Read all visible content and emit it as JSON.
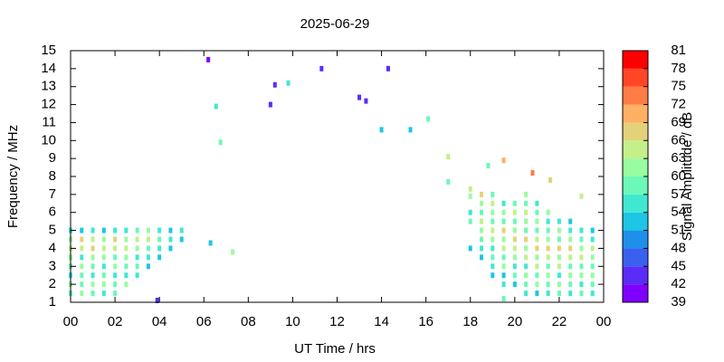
{
  "chart_data": {
    "type": "scatter",
    "title": "2025-06-29",
    "xlabel": "UT Time / hrs",
    "ylabel": "Frequency / MHz",
    "colorbar_label": "Signal Amplitude / dB",
    "xlim": [
      0,
      24
    ],
    "xticks": [
      {
        "value": 0,
        "label": "00"
      },
      {
        "value": 2,
        "label": "02"
      },
      {
        "value": 4,
        "label": "04"
      },
      {
        "value": 6,
        "label": "06"
      },
      {
        "value": 8,
        "label": "08"
      },
      10,
      12,
      14,
      16,
      18,
      20,
      22,
      {
        "value": 24,
        "label": "00"
      }
    ],
    "ylim": [
      1,
      15
    ],
    "yticks": [
      1,
      2,
      3,
      4,
      5,
      6,
      7,
      8,
      9,
      10,
      11,
      12,
      13,
      14,
      15
    ],
    "zlim": [
      39,
      81
    ],
    "zticks": [
      39,
      42,
      45,
      48,
      51,
      54,
      57,
      60,
      63,
      66,
      69,
      72,
      75,
      78,
      81
    ],
    "colors": [
      "#7f00ff",
      "#5b2cf6",
      "#3a60f0",
      "#1e90ec",
      "#1cc6e4",
      "#40e8d2",
      "#6cf8b8",
      "#98fca0",
      "#c4f08a",
      "#e4d27a",
      "#ffb064",
      "#ff7c46",
      "#ff4626",
      "#ff0000"
    ],
    "sweeps": [
      {
        "time": 0,
        "frequency": [
          1.5,
          2,
          2.5,
          3,
          3.5,
          4,
          4.5,
          5
        ],
        "amplitude": [
          57,
          60,
          54,
          57,
          60,
          63,
          60,
          54
        ]
      },
      {
        "time": 0.5,
        "frequency": [
          1.5,
          2,
          2.5,
          3,
          3.5,
          4,
          4.5,
          5
        ],
        "amplitude": [
          60,
          57,
          57,
          60,
          54,
          63,
          66,
          51
        ]
      },
      {
        "time": 1,
        "frequency": [
          1.5,
          2,
          2.5,
          3,
          3.5,
          4,
          4.5,
          5
        ],
        "amplitude": [
          57,
          60,
          54,
          57,
          60,
          66,
          63,
          54
        ]
      },
      {
        "time": 1.5,
        "frequency": [
          1.5,
          2,
          2.5,
          3,
          3.5,
          4,
          4.5,
          5
        ],
        "amplitude": [
          54,
          60,
          57,
          54,
          60,
          63,
          60,
          51
        ]
      },
      {
        "time": 2,
        "frequency": [
          1.5,
          2,
          2.5,
          3,
          3.5,
          4,
          4.5,
          5
        ],
        "amplitude": [
          57,
          57,
          54,
          60,
          57,
          63,
          66,
          54
        ]
      },
      {
        "time": 2.5,
        "frequency": [
          2,
          2.5,
          3,
          3.5,
          4,
          4.5,
          5
        ],
        "amplitude": [
          60,
          54,
          57,
          60,
          63,
          60,
          54
        ]
      },
      {
        "time": 3,
        "frequency": [
          2.5,
          3,
          3.5,
          4,
          4.5,
          5
        ],
        "amplitude": [
          54,
          57,
          54,
          60,
          63,
          57
        ]
      },
      {
        "time": 3.5,
        "frequency": [
          3,
          3.5,
          4,
          4.5,
          5
        ],
        "amplitude": [
          51,
          54,
          57,
          63,
          60
        ]
      },
      {
        "time": 3.9,
        "frequency": [
          1.1
        ],
        "amplitude": [
          42
        ]
      },
      {
        "time": 4,
        "frequency": [
          3.5,
          4,
          4.5,
          5
        ],
        "amplitude": [
          51,
          54,
          57,
          54
        ]
      },
      {
        "time": 4.5,
        "frequency": [
          4,
          4.5,
          5
        ],
        "amplitude": [
          51,
          54,
          51
        ]
      },
      {
        "time": 5,
        "frequency": [
          4.5,
          5
        ],
        "amplitude": [
          51,
          54
        ]
      },
      {
        "time": 6.2,
        "frequency": [
          14.5
        ],
        "amplitude": [
          39
        ]
      },
      {
        "time": 6.3,
        "frequency": [
          4.3
        ],
        "amplitude": [
          51
        ]
      },
      {
        "time": 6.55,
        "frequency": [
          11.9
        ],
        "amplitude": [
          54
        ]
      },
      {
        "time": 6.75,
        "frequency": [
          9.9
        ],
        "amplitude": [
          57
        ]
      },
      {
        "time": 7.3,
        "frequency": [
          3.8
        ],
        "amplitude": [
          60
        ]
      },
      {
        "time": 9,
        "frequency": [
          12
        ],
        "amplitude": [
          42
        ]
      },
      {
        "time": 9.2,
        "frequency": [
          13.1
        ],
        "amplitude": [
          42
        ]
      },
      {
        "time": 9.8,
        "frequency": [
          13.2
        ],
        "amplitude": [
          54
        ]
      },
      {
        "time": 11.3,
        "frequency": [
          14
        ],
        "amplitude": [
          42
        ]
      },
      {
        "time": 13,
        "frequency": [
          12.4
        ],
        "amplitude": [
          42
        ]
      },
      {
        "time": 13.3,
        "frequency": [
          12.2
        ],
        "amplitude": [
          42
        ]
      },
      {
        "time": 14,
        "frequency": [
          10.6
        ],
        "amplitude": [
          51
        ]
      },
      {
        "time": 14.3,
        "frequency": [
          14
        ],
        "amplitude": [
          42
        ]
      },
      {
        "time": 15.3,
        "frequency": [
          10.6
        ],
        "amplitude": [
          51
        ]
      },
      {
        "time": 16.1,
        "frequency": [
          11.2
        ],
        "amplitude": [
          57
        ]
      },
      {
        "time": 17,
        "frequency": [
          7.7,
          9.1
        ],
        "amplitude": [
          57,
          63
        ]
      },
      {
        "time": 18,
        "frequency": [
          4,
          5.5,
          6,
          6.9,
          7.3
        ],
        "amplitude": [
          51,
          57,
          54,
          60,
          63
        ]
      },
      {
        "time": 18.5,
        "frequency": [
          3.5,
          4,
          4.5,
          5,
          5.5,
          6,
          6.5,
          7
        ],
        "amplitude": [
          51,
          54,
          57,
          60,
          63,
          57,
          60,
          66
        ]
      },
      {
        "time": 18.8,
        "frequency": [
          8.6
        ],
        "amplitude": [
          57
        ]
      },
      {
        "time": 19,
        "frequency": [
          2.5,
          3,
          3.5,
          4,
          4.5,
          5,
          5.5,
          6,
          6.5,
          7
        ],
        "amplitude": [
          51,
          54,
          57,
          54,
          60,
          63,
          57,
          60,
          63,
          57
        ]
      },
      {
        "time": 19.5,
        "frequency": [
          1.2,
          2,
          2.5,
          3,
          3.5,
          4,
          4.5,
          5,
          5.5,
          6,
          6.5,
          8.9
        ],
        "amplitude": [
          57,
          54,
          51,
          60,
          57,
          63,
          60,
          66,
          57,
          60,
          54,
          69
        ]
      },
      {
        "time": 20,
        "frequency": [
          2,
          2.5,
          3,
          3.5,
          4,
          4.5,
          5,
          5.5,
          6,
          6.5
        ],
        "amplitude": [
          51,
          57,
          54,
          60,
          63,
          66,
          60,
          57,
          63,
          57
        ]
      },
      {
        "time": 20.5,
        "frequency": [
          1.5,
          2,
          2.5,
          3,
          3.5,
          4,
          4.5,
          5,
          5.5,
          6,
          6.5,
          7
        ],
        "amplitude": [
          54,
          57,
          60,
          54,
          63,
          60,
          66,
          57,
          60,
          63,
          57,
          60
        ]
      },
      {
        "time": 20.8,
        "frequency": [
          8.2
        ],
        "amplitude": [
          72
        ]
      },
      {
        "time": 21,
        "frequency": [
          1.5,
          2,
          2.5,
          3,
          3.5,
          4,
          4.5,
          5,
          5.5,
          6,
          6.5
        ],
        "amplitude": [
          51,
          60,
          57,
          63,
          60,
          66,
          63,
          57,
          60,
          57,
          54
        ]
      },
      {
        "time": 21.5,
        "frequency": [
          1.5,
          2,
          2.5,
          3,
          3.5,
          4,
          4.5,
          5,
          5.5,
          6
        ],
        "amplitude": [
          54,
          57,
          60,
          57,
          63,
          66,
          60,
          57,
          54,
          60
        ]
      },
      {
        "time": 21.6,
        "frequency": [
          7.8
        ],
        "amplitude": [
          66
        ]
      },
      {
        "time": 22,
        "frequency": [
          1.5,
          2,
          2.5,
          3,
          3.5,
          4,
          4.5,
          5,
          5.5
        ],
        "amplitude": [
          57,
          60,
          54,
          63,
          60,
          66,
          57,
          60,
          54
        ]
      },
      {
        "time": 22.5,
        "frequency": [
          1.5,
          2,
          2.5,
          3,
          3.5,
          4,
          4.5,
          5,
          5.5
        ],
        "amplitude": [
          54,
          57,
          60,
          57,
          63,
          66,
          60,
          54,
          51
        ]
      },
      {
        "time": 23,
        "frequency": [
          1.5,
          2,
          2.5,
          3,
          3.5,
          4,
          4.5,
          5,
          6.9
        ],
        "amplitude": [
          57,
          54,
          60,
          57,
          63,
          60,
          57,
          54,
          63
        ]
      },
      {
        "time": 23.5,
        "frequency": [
          1.5,
          2,
          2.5,
          3,
          3.5,
          4,
          4.5,
          5
        ],
        "amplitude": [
          54,
          57,
          60,
          57,
          60,
          63,
          54,
          51
        ]
      }
    ]
  }
}
